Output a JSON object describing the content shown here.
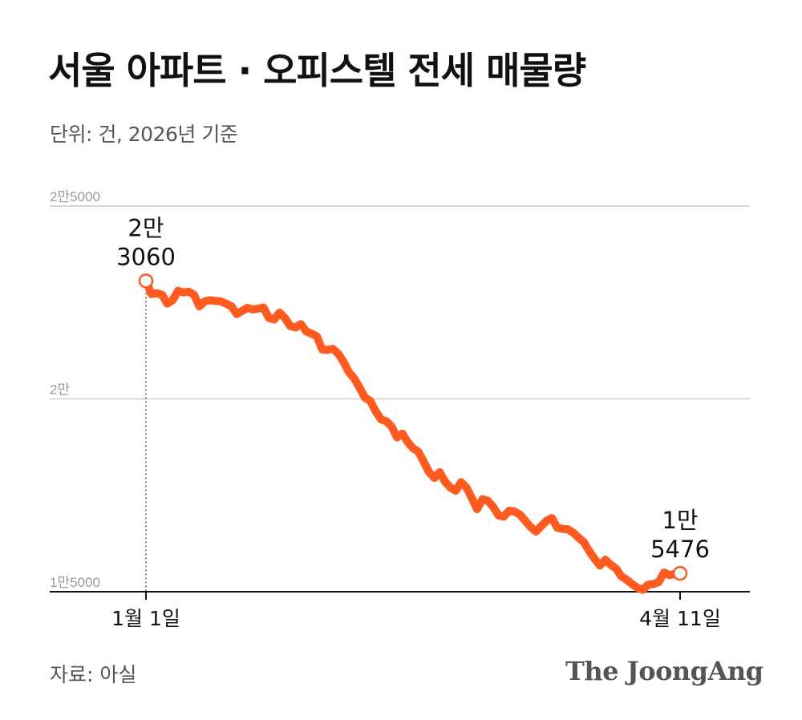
{
  "header": {
    "title": "서울 아파트 · 오피스텔 전세 매물량",
    "subtitle": "단위: 건, 2026년 기준"
  },
  "footer": {
    "source": "자료: 아실",
    "logo": "The JoongAng"
  },
  "colors": {
    "line": "#FF5A1F",
    "grid": "#cccccc",
    "axis": "#111111"
  },
  "chart_data": {
    "type": "line",
    "title": "서울 아파트 · 오피스텔 전세 매물량",
    "subtitle": "단위: 건, 2026년 기준",
    "ylim": [
      15000,
      25000
    ],
    "yticks": [
      {
        "value": 15000,
        "label": "1만5000"
      },
      {
        "value": 20000,
        "label": "2만"
      },
      {
        "value": 25000,
        "label": "2만5000"
      }
    ],
    "x_range": [
      "2026-01-01",
      "2026-04-11"
    ],
    "xticks": [
      {
        "date": "2026-01-01",
        "label": "1월 1일"
      },
      {
        "date": "2026-04-11",
        "label": "4월 11일"
      }
    ],
    "grid": true,
    "annotations": [
      {
        "date": "2026-01-01",
        "value": 23060,
        "label_lines": [
          "2만",
          "3060"
        ]
      },
      {
        "date": "2026-04-11",
        "value": 15476,
        "label_lines": [
          "1만",
          "5476"
        ]
      }
    ],
    "series": [
      {
        "points": [
          [
            "2026-01-01",
            23060
          ],
          [
            "2026-01-02",
            22720
          ],
          [
            "2026-01-03",
            22740
          ],
          [
            "2026-01-04",
            22700
          ],
          [
            "2026-01-05",
            22470
          ],
          [
            "2026-01-06",
            22560
          ],
          [
            "2026-01-07",
            22800
          ],
          [
            "2026-01-08",
            22760
          ],
          [
            "2026-01-09",
            22780
          ],
          [
            "2026-01-10",
            22700
          ],
          [
            "2026-01-11",
            22400
          ],
          [
            "2026-01-12",
            22530
          ],
          [
            "2026-01-13",
            22560
          ],
          [
            "2026-01-14",
            22540
          ],
          [
            "2026-01-15",
            22530
          ],
          [
            "2026-01-16",
            22470
          ],
          [
            "2026-01-17",
            22400
          ],
          [
            "2026-01-18",
            22200
          ],
          [
            "2026-01-19",
            22280
          ],
          [
            "2026-01-20",
            22360
          ],
          [
            "2026-01-21",
            22320
          ],
          [
            "2026-01-22",
            22340
          ],
          [
            "2026-01-23",
            22370
          ],
          [
            "2026-01-24",
            22100
          ],
          [
            "2026-01-25",
            22060
          ],
          [
            "2026-01-26",
            22240
          ],
          [
            "2026-01-27",
            22100
          ],
          [
            "2026-01-28",
            21890
          ],
          [
            "2026-01-29",
            21850
          ],
          [
            "2026-01-30",
            21940
          ],
          [
            "2026-01-31",
            21750
          ],
          [
            "2026-02-01",
            21690
          ],
          [
            "2026-02-02",
            21620
          ],
          [
            "2026-02-03",
            21280
          ],
          [
            "2026-02-04",
            21270
          ],
          [
            "2026-02-05",
            21300
          ],
          [
            "2026-02-06",
            21170
          ],
          [
            "2026-02-07",
            20960
          ],
          [
            "2026-02-08",
            20690
          ],
          [
            "2026-02-09",
            20530
          ],
          [
            "2026-02-10",
            20290
          ],
          [
            "2026-02-11",
            20030
          ],
          [
            "2026-02-12",
            19950
          ],
          [
            "2026-02-13",
            19680
          ],
          [
            "2026-02-14",
            19470
          ],
          [
            "2026-02-15",
            19420
          ],
          [
            "2026-02-16",
            19280
          ],
          [
            "2026-02-17",
            19000
          ],
          [
            "2026-02-18",
            19100
          ],
          [
            "2026-02-19",
            18880
          ],
          [
            "2026-02-20",
            18720
          ],
          [
            "2026-02-21",
            18630
          ],
          [
            "2026-02-22",
            18370
          ],
          [
            "2026-02-23",
            18100
          ],
          [
            "2026-02-24",
            17950
          ],
          [
            "2026-02-25",
            18100
          ],
          [
            "2026-02-26",
            17850
          ],
          [
            "2026-02-27",
            17700
          ],
          [
            "2026-02-28",
            17620
          ],
          [
            "2026-03-01",
            17840
          ],
          [
            "2026-03-02",
            17700
          ],
          [
            "2026-03-03",
            17430
          ],
          [
            "2026-03-04",
            17140
          ],
          [
            "2026-03-05",
            17400
          ],
          [
            "2026-03-06",
            17360
          ],
          [
            "2026-03-07",
            17200
          ],
          [
            "2026-03-08",
            16980
          ],
          [
            "2026-03-09",
            16950
          ],
          [
            "2026-03-10",
            17100
          ],
          [
            "2026-03-11",
            17080
          ],
          [
            "2026-03-12",
            17000
          ],
          [
            "2026-03-13",
            16840
          ],
          [
            "2026-03-14",
            16680
          ],
          [
            "2026-03-15",
            16560
          ],
          [
            "2026-03-16",
            16700
          ],
          [
            "2026-03-17",
            16840
          ],
          [
            "2026-03-18",
            16910
          ],
          [
            "2026-03-19",
            16660
          ],
          [
            "2026-03-20",
            16630
          ],
          [
            "2026-03-21",
            16620
          ],
          [
            "2026-03-22",
            16530
          ],
          [
            "2026-03-23",
            16400
          ],
          [
            "2026-03-24",
            16280
          ],
          [
            "2026-03-25",
            16050
          ],
          [
            "2026-03-26",
            15850
          ],
          [
            "2026-03-27",
            15680
          ],
          [
            "2026-03-28",
            15830
          ],
          [
            "2026-03-29",
            15700
          ],
          [
            "2026-03-30",
            15600
          ],
          [
            "2026-03-31",
            15400
          ],
          [
            "2026-04-01",
            15310
          ],
          [
            "2026-04-02",
            15200
          ],
          [
            "2026-04-03",
            15100
          ],
          [
            "2026-04-04",
            15050
          ],
          [
            "2026-04-05",
            15180
          ],
          [
            "2026-04-06",
            15200
          ],
          [
            "2026-04-07",
            15250
          ],
          [
            "2026-04-08",
            15500
          ],
          [
            "2026-04-09",
            15430
          ],
          [
            "2026-04-10",
            15460
          ],
          [
            "2026-04-11",
            15476
          ]
        ]
      }
    ]
  }
}
